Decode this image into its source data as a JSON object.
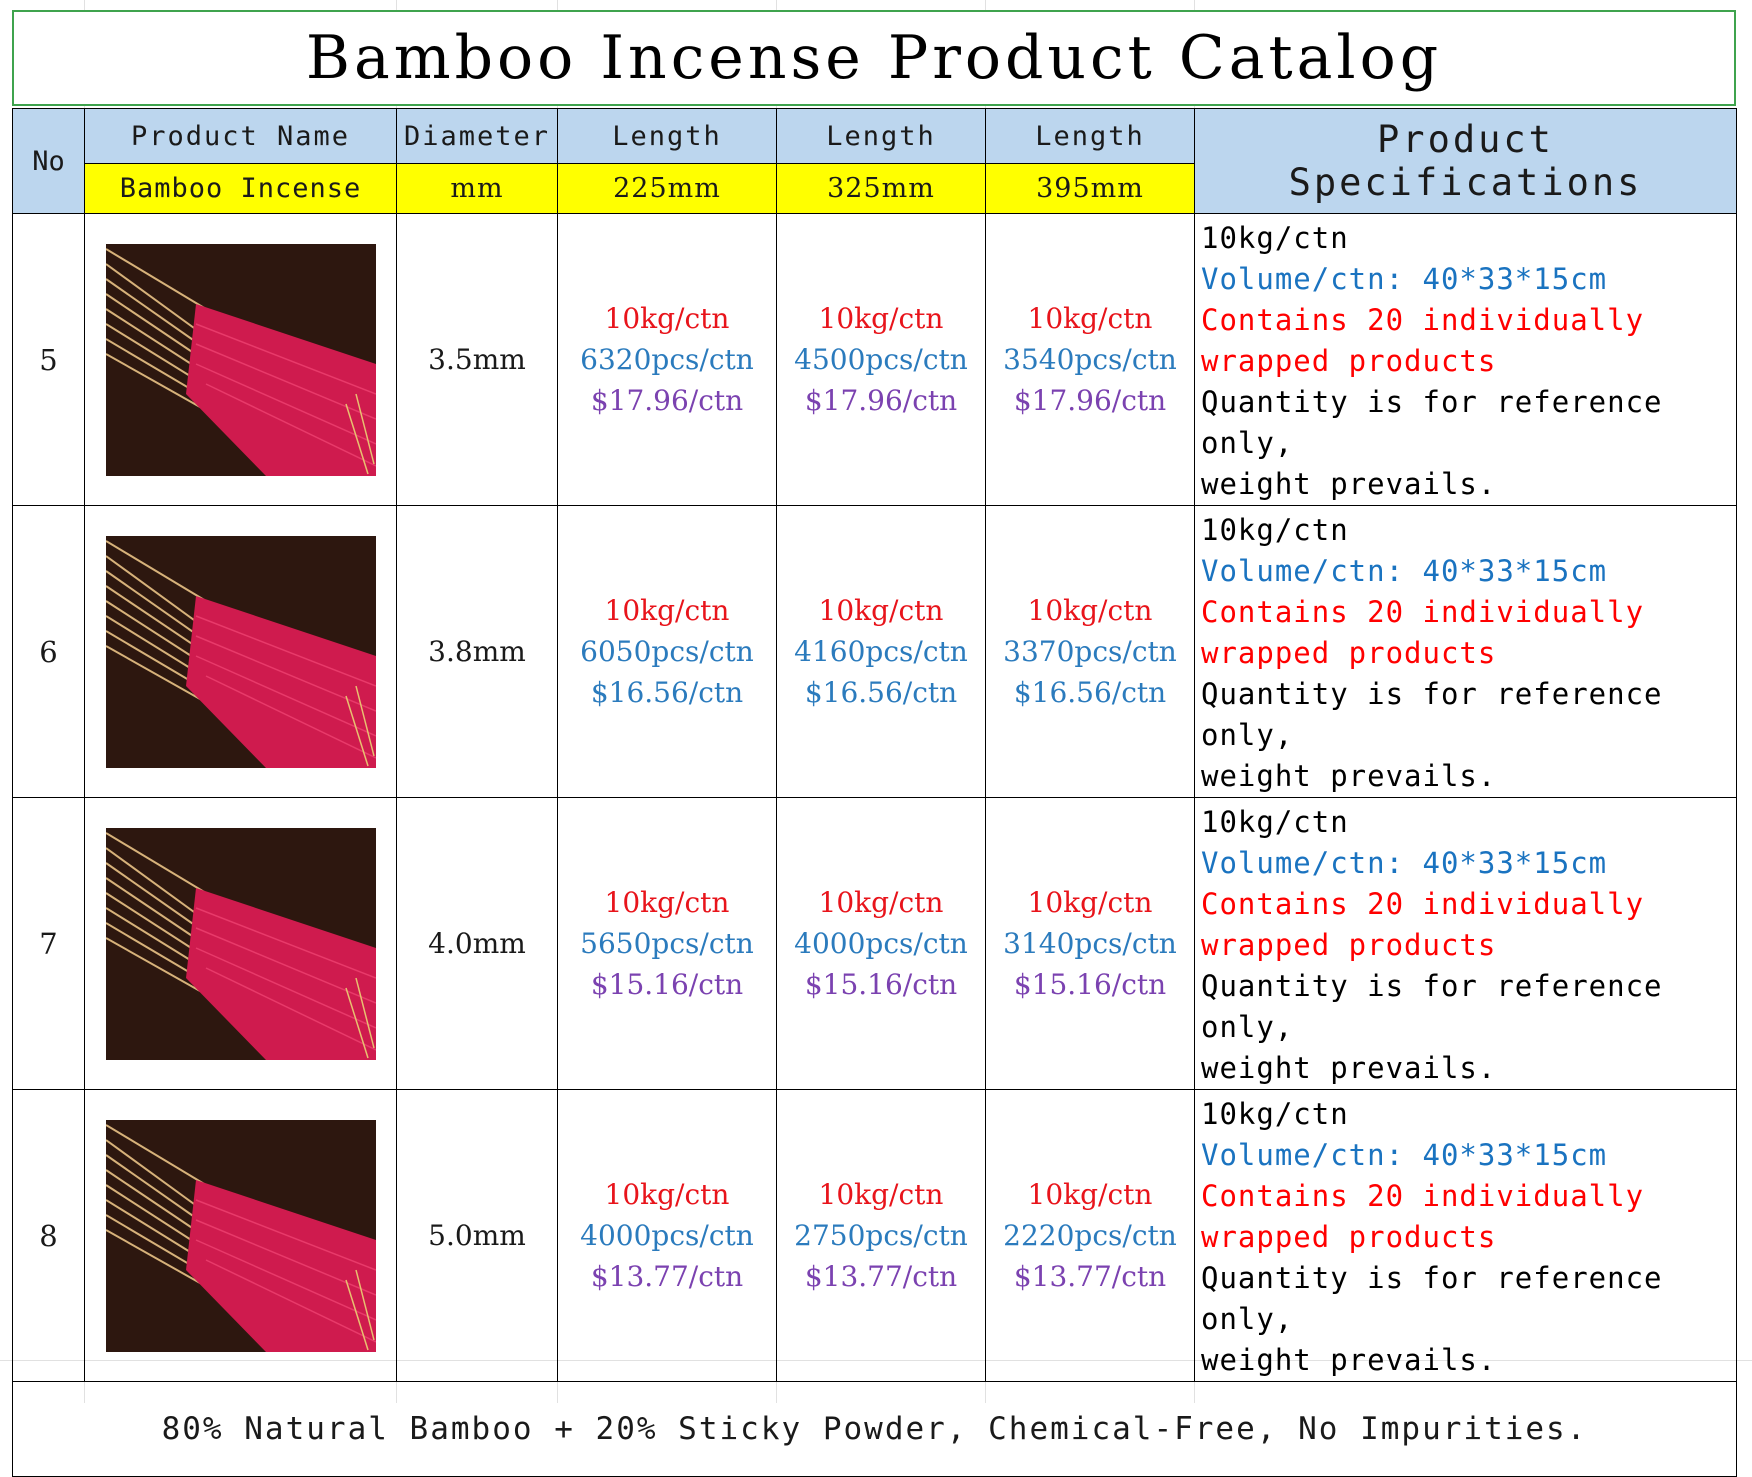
{
  "title": "Bamboo Incense Product Catalog",
  "header": {
    "no": "No",
    "product_name": "Product Name",
    "diameter": "Diameter",
    "length_1": "Length",
    "length_2": "Length",
    "length_3": "Length",
    "specs": "Product Specifications",
    "product_value": "Bamboo Incense",
    "diameter_unit": "mm",
    "len_1_value": "225mm",
    "len_2_value": "325mm",
    "len_3_value": "395mm"
  },
  "rows": [
    {
      "no": "5",
      "image": "bamboo-incense-photo",
      "diameter": "3.5mm",
      "l1": {
        "weight": "10kg/ctn",
        "pcs": "6320pcs/ctn",
        "price": "$17.96/ctn"
      },
      "l2": {
        "weight": "10kg/ctn",
        "pcs": "4500pcs/ctn",
        "price": "$17.96/ctn"
      },
      "l3": {
        "weight": "10kg/ctn",
        "pcs": "3540pcs/ctn",
        "price": "$17.96/ctn"
      },
      "spec": {
        "weight": "10kg/ctn",
        "volume": "Volume/ctn: 40*33*15cm",
        "contains_1": "Contains 20 individually",
        "contains_2": "wrapped products",
        "note_1": "Quantity is for reference only,",
        "note_2": "weight prevails."
      }
    },
    {
      "no": "6",
      "image": "bamboo-incense-photo",
      "diameter": "3.8mm",
      "l1": {
        "weight": "10kg/ctn",
        "pcs": "6050pcs/ctn",
        "price": "$16.56/ctn"
      },
      "l2": {
        "weight": "10kg/ctn",
        "pcs": "4160pcs/ctn",
        "price": "$16.56/ctn"
      },
      "l3": {
        "weight": "10kg/ctn",
        "pcs": "3370pcs/ctn",
        "price": "$16.56/ctn"
      },
      "spec": {
        "weight": "10kg/ctn",
        "volume": "Volume/ctn: 40*33*15cm",
        "contains_1": "Contains 20 individually",
        "contains_2": "wrapped products",
        "note_1": "Quantity is for reference only,",
        "note_2": "weight prevails."
      }
    },
    {
      "no": "7",
      "image": "bamboo-incense-photo",
      "diameter": "4.0mm",
      "l1": {
        "weight": "10kg/ctn",
        "pcs": "5650pcs/ctn",
        "price": "$15.16/ctn"
      },
      "l2": {
        "weight": "10kg/ctn",
        "pcs": "4000pcs/ctn",
        "price": "$15.16/ctn"
      },
      "l3": {
        "weight": "10kg/ctn",
        "pcs": "3140pcs/ctn",
        "price": "$15.16/ctn"
      },
      "spec": {
        "weight": "10kg/ctn",
        "volume": "Volume/ctn: 40*33*15cm",
        "contains_1": "Contains 20 individually",
        "contains_2": "wrapped products",
        "note_1": "Quantity is for reference only,",
        "note_2": "weight prevails."
      }
    },
    {
      "no": "8",
      "image": "bamboo-incense-photo",
      "diameter": "5.0mm",
      "l1": {
        "weight": "10kg/ctn",
        "pcs": "4000pcs/ctn",
        "price": "$13.77/ctn"
      },
      "l2": {
        "weight": "10kg/ctn",
        "pcs": "2750pcs/ctn",
        "price": "$13.77/ctn"
      },
      "l3": {
        "weight": "10kg/ctn",
        "pcs": "2220pcs/ctn",
        "price": "$13.77/ctn"
      },
      "spec": {
        "weight": "10kg/ctn",
        "volume": "Volume/ctn: 40*33*15cm",
        "contains_1": "Contains 20 individually",
        "contains_2": "wrapped products",
        "note_1": "Quantity is for reference only,",
        "note_2": "weight prevails."
      }
    }
  ],
  "footer": "80% Natural Bamboo + 20% Sticky Powder, Chemical-Free, No Impurities.",
  "colors": {
    "header_blue": "#bcd6ee",
    "header_yellow": "#ffff00",
    "title_border": "#3fa34d",
    "weight_red": "#e8141b",
    "pcs_blue": "#2b7bbd",
    "price_purple": "#7b42b0"
  }
}
